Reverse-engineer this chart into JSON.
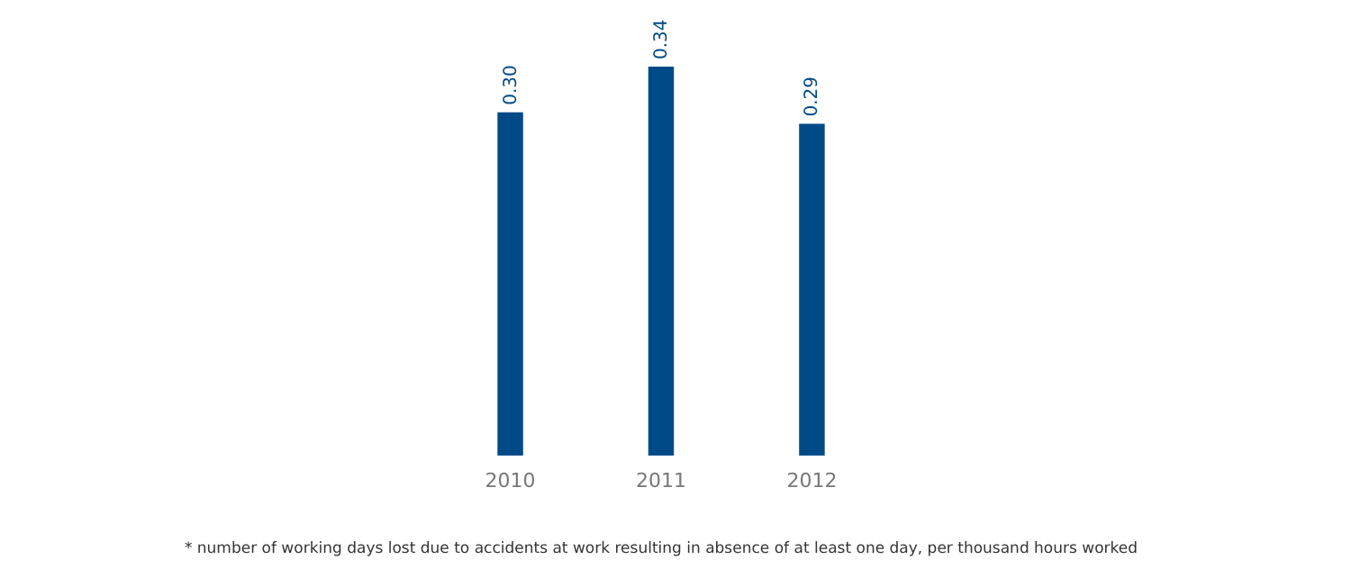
{
  "chart_data": {
    "type": "bar",
    "categories": [
      "2010",
      "2011",
      "2012"
    ],
    "values": [
      0.3,
      0.34,
      0.29
    ],
    "value_labels": [
      "0.30",
      "0.34",
      "0.29"
    ],
    "color": "#004a87",
    "annotations": [
      "* number of working days lost due to accidents at work resulting in absence of at least one day, per thousand hours worked"
    ]
  }
}
